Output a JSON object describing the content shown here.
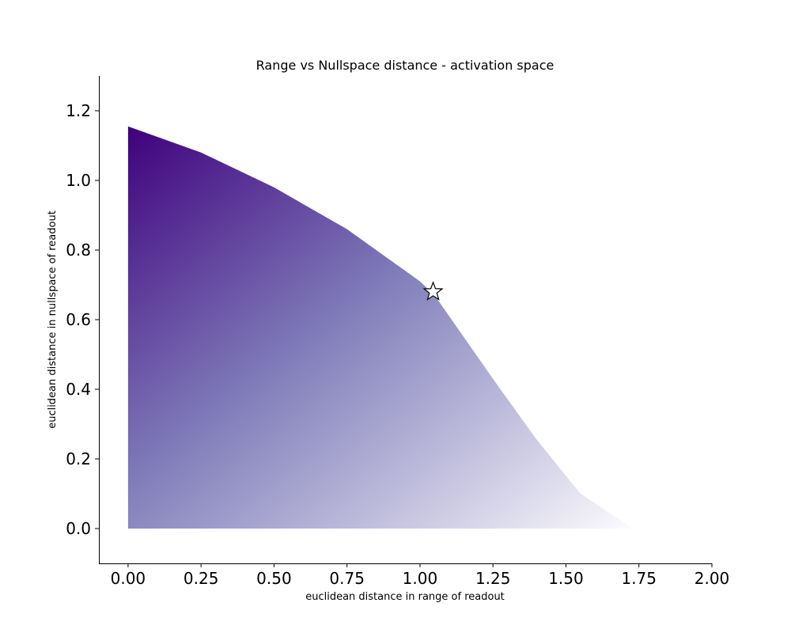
{
  "chart_data": {
    "type": "area",
    "title": "Range vs Nullspace distance - activation space",
    "xlabel": "euclidean distance in range of readout",
    "ylabel": "euclidean distance in nullspace of readout",
    "xlim": [
      -0.1,
      2.0
    ],
    "ylim": [
      -0.1,
      1.3
    ],
    "x_ticks": [
      "0.00",
      "0.25",
      "0.50",
      "0.75",
      "1.00",
      "1.25",
      "1.50",
      "1.75",
      "2.00"
    ],
    "y_ticks": [
      "0.0",
      "0.2",
      "0.4",
      "0.6",
      "0.8",
      "1.0",
      "1.2"
    ],
    "grid": false,
    "colormap": "Purples",
    "colors": {
      "dark": "#3f007d",
      "mid": "#807dba",
      "light": "#fcfbfd",
      "star_fill": "#ffffff",
      "star_stroke": "#000000"
    },
    "boundary": [
      {
        "x": 0.0,
        "y": 1.155
      },
      {
        "x": 0.25,
        "y": 1.08
      },
      {
        "x": 0.5,
        "y": 0.98
      },
      {
        "x": 0.75,
        "y": 0.86
      },
      {
        "x": 0.9,
        "y": 0.77
      },
      {
        "x": 1.0,
        "y": 0.71
      },
      {
        "x": 1.05,
        "y": 0.67
      },
      {
        "x": 1.15,
        "y": 0.55
      },
      {
        "x": 1.25,
        "y": 0.43
      },
      {
        "x": 1.4,
        "y": 0.255
      },
      {
        "x": 1.55,
        "y": 0.1
      },
      {
        "x": 1.73,
        "y": 0.0
      }
    ],
    "marker": {
      "shape": "star",
      "x": 1.045,
      "y": 0.68
    }
  }
}
